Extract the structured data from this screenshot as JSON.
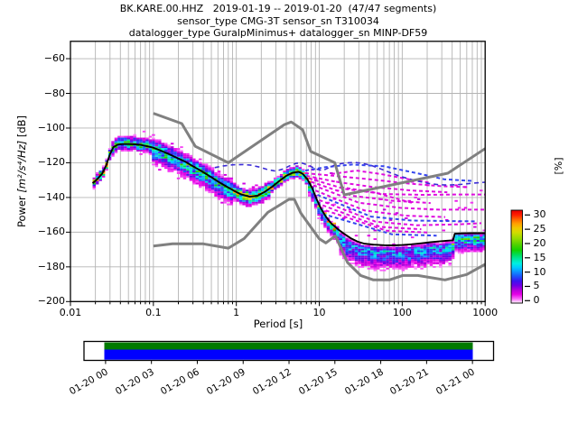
{
  "header": {
    "line1": "BK.KARE.00.HHZ   2019-01-19 -- 2019-01-20  (47/47 segments)",
    "line2": "sensor_type CMG-3T sensor_sn T310034",
    "line3": "datalogger_type GuralpMinimus+ datalogger_sn MINP-DF59"
  },
  "axes": {
    "xlabel": "Period [s]",
    "ylabel_pre": "Power ",
    "ylabel_math": "[m²/s⁴/Hz]",
    "ylabel_unit": " [dB]",
    "xlim": [
      0.01,
      1000
    ],
    "ylim": [
      -200,
      -50
    ],
    "xticks": [
      {
        "v": 0.01,
        "label": "0.01"
      },
      {
        "v": 0.1,
        "label": "0.1"
      },
      {
        "v": 1,
        "label": "1"
      },
      {
        "v": 10,
        "label": "10"
      },
      {
        "v": 100,
        "label": "100"
      },
      {
        "v": 1000,
        "label": "1000"
      }
    ],
    "yticks": [
      {
        "v": -60,
        "label": "−60"
      },
      {
        "v": -80,
        "label": "−80"
      },
      {
        "v": -100,
        "label": "−100"
      },
      {
        "v": -120,
        "label": "−120"
      },
      {
        "v": -140,
        "label": "−140"
      },
      {
        "v": -160,
        "label": "−160"
      },
      {
        "v": -180,
        "label": "−180"
      },
      {
        "v": -200,
        "label": "−200"
      }
    ],
    "grid_color": "#b4b4b4",
    "frame_color": "#000000"
  },
  "colorbar": {
    "label": "[%]",
    "ticks": [
      30,
      25,
      20,
      15,
      10,
      5,
      0
    ],
    "max_value": 31.6,
    "stops": [
      [
        0,
        "#ffffff"
      ],
      [
        1.5,
        "#fa64fa"
      ],
      [
        3,
        "#e600e6"
      ],
      [
        4.5,
        "#b400dc"
      ],
      [
        6,
        "#6e00e6"
      ],
      [
        7.5,
        "#3c14f0"
      ],
      [
        9,
        "#1e50fa"
      ],
      [
        10.5,
        "#0f8cff"
      ],
      [
        12,
        "#00c8ff"
      ],
      [
        13.5,
        "#00f0e1"
      ],
      [
        15,
        "#00e6a0"
      ],
      [
        16.5,
        "#00dc55"
      ],
      [
        18,
        "#14d200"
      ],
      [
        20,
        "#55d200"
      ],
      [
        22,
        "#96dc00"
      ],
      [
        24,
        "#d2dc00"
      ],
      [
        25.5,
        "#f0c800"
      ],
      [
        27,
        "#ffa000"
      ],
      [
        28.5,
        "#ff6400"
      ],
      [
        30,
        "#ff1e00"
      ],
      [
        31.6,
        "#e60000"
      ]
    ]
  },
  "timeline": {
    "labels": [
      "01-20 00",
      "01-20 03",
      "01-20 06",
      "01-20 09",
      "01-20 12",
      "01-20 15",
      "01-20 18",
      "01-20 21",
      "01-21 00"
    ],
    "coverage_colors": {
      "top_band": "#007a00",
      "bottom_band": "#0000ff"
    },
    "frame_color": "#000000"
  },
  "chart_data": {
    "type": "heatmap",
    "title": "BK.KARE.00.HHZ 2019-01-19 -- 2019-01-20 (47/47 segments)",
    "xlabel": "Period [s]",
    "ylabel": "Power [m²/s⁴/Hz] [dB]",
    "xlim": [
      0.01,
      1000
    ],
    "ylim": [
      -200,
      -50
    ],
    "x_log": true,
    "grid": true,
    "colorbar_unit": "%",
    "colorbar_range": [
      0,
      30
    ],
    "series": {
      "mode_line": {
        "name": "psd-mode-curve",
        "color": "#000000",
        "width": 1.9,
        "points": [
          [
            0.0185,
            -131.8
          ],
          [
            0.021,
            -129.5
          ],
          [
            0.024,
            -126.5
          ],
          [
            0.027,
            -121.5
          ],
          [
            0.03,
            -115
          ],
          [
            0.033,
            -111
          ],
          [
            0.037,
            -109.6
          ],
          [
            0.042,
            -109.2
          ],
          [
            0.05,
            -109.2
          ],
          [
            0.06,
            -109.3
          ],
          [
            0.07,
            -109.7
          ],
          [
            0.085,
            -110.5
          ],
          [
            0.1,
            -111.3
          ],
          [
            0.12,
            -112.8
          ],
          [
            0.15,
            -114.8
          ],
          [
            0.19,
            -117
          ],
          [
            0.24,
            -119.3
          ],
          [
            0.3,
            -122
          ],
          [
            0.38,
            -124.8
          ],
          [
            0.48,
            -127.8
          ],
          [
            0.6,
            -130.8
          ],
          [
            0.75,
            -133.5
          ],
          [
            0.95,
            -136.3
          ],
          [
            1.15,
            -138.3
          ],
          [
            1.45,
            -139.6
          ],
          [
            1.8,
            -139
          ],
          [
            2.2,
            -136.8
          ],
          [
            2.7,
            -133.8
          ],
          [
            3.3,
            -130.5
          ],
          [
            4.0,
            -127.5
          ],
          [
            4.8,
            -125.7
          ],
          [
            5.6,
            -125.2
          ],
          [
            6.3,
            -126.3
          ],
          [
            7.2,
            -129.5
          ],
          [
            8.2,
            -134.5
          ],
          [
            9.3,
            -141
          ],
          [
            10.5,
            -146.5
          ],
          [
            12,
            -151
          ],
          [
            14,
            -155
          ],
          [
            17,
            -158.5
          ],
          [
            20,
            -161
          ],
          [
            24,
            -163.5
          ],
          [
            29,
            -165.5
          ],
          [
            35,
            -166.6
          ],
          [
            45,
            -167.2
          ],
          [
            60,
            -167.5
          ],
          [
            80,
            -167.6
          ],
          [
            100,
            -167.4
          ],
          [
            130,
            -167
          ],
          [
            170,
            -166.4
          ],
          [
            220,
            -165.8
          ],
          [
            280,
            -165.3
          ],
          [
            350,
            -164.9
          ],
          [
            410,
            -164.7
          ],
          [
            430,
            -160.9
          ],
          [
            520,
            -160.7
          ],
          [
            700,
            -160.6
          ],
          [
            1000,
            -160.6
          ]
        ]
      },
      "noise_model_low": {
        "name": "peterson-nlnm",
        "color": "#808080",
        "width": 3,
        "points": [
          [
            0.1,
            -168.0
          ],
          [
            0.17,
            -166.7
          ],
          [
            0.4,
            -166.7
          ],
          [
            0.8,
            -169.2
          ],
          [
            1.24,
            -163.7
          ],
          [
            2.4,
            -148.6
          ],
          [
            4.3,
            -141.1
          ],
          [
            5.0,
            -141.1
          ],
          [
            6.0,
            -149.0
          ],
          [
            10.0,
            -163.8
          ],
          [
            12.0,
            -166.2
          ],
          [
            15.6,
            -162.1
          ],
          [
            21.9,
            -177.5
          ],
          [
            31.6,
            -185.0
          ],
          [
            45.0,
            -187.5
          ],
          [
            70.0,
            -187.5
          ],
          [
            101.0,
            -185.0
          ],
          [
            154.0,
            -185.0
          ],
          [
            328.0,
            -187.5
          ],
          [
            600.0,
            -184.4
          ],
          [
            1000,
            -178.5
          ]
        ]
      },
      "noise_model_high": {
        "name": "peterson-nhnm",
        "color": "#808080",
        "width": 3,
        "points": [
          [
            0.1,
            -91.5
          ],
          [
            0.22,
            -97.4
          ],
          [
            0.32,
            -110.5
          ],
          [
            0.8,
            -120.0
          ],
          [
            3.8,
            -98.0
          ],
          [
            4.6,
            -96.5
          ],
          [
            6.3,
            -101.0
          ],
          [
            7.9,
            -113.5
          ],
          [
            15.4,
            -120.0
          ],
          [
            20.0,
            -138.5
          ],
          [
            354.8,
            -126.0
          ],
          [
            1000,
            -111.8
          ]
        ]
      },
      "upper_envelope_dashed": {
        "name": "low-percentage-envelope",
        "color": "#3b2bd6",
        "width": 1.6,
        "dash": "5 4",
        "points": [
          [
            0.55,
            -122.8
          ],
          [
            0.7,
            -121.8
          ],
          [
            0.9,
            -121.2
          ],
          [
            1.2,
            -121
          ],
          [
            1.5,
            -121.4
          ],
          [
            1.9,
            -122.5
          ],
          [
            2.4,
            -124
          ],
          [
            3.0,
            -124.8
          ],
          [
            3.7,
            -123.5
          ],
          [
            4.5,
            -121.5
          ],
          [
            5.3,
            -120.3
          ],
          [
            6.2,
            -120.2
          ],
          [
            7.5,
            -121.5
          ],
          [
            9,
            -123.5
          ],
          [
            11,
            -124.5
          ],
          [
            13.5,
            -122.5
          ],
          [
            16,
            -121
          ],
          [
            20,
            -120.2
          ],
          [
            26,
            -119.8
          ],
          [
            33,
            -120.3
          ],
          [
            42,
            -121.5
          ],
          [
            55,
            -123.5
          ],
          [
            70,
            -125.5
          ],
          [
            90,
            -127.5
          ],
          [
            115,
            -129
          ],
          [
            150,
            -130.5
          ],
          [
            200,
            -131.8
          ],
          [
            270,
            -132.6
          ],
          [
            360,
            -132.9
          ],
          [
            500,
            -132.5
          ],
          [
            700,
            -131.8
          ],
          [
            1000,
            -131.2
          ]
        ]
      },
      "low_percentage_traces": [
        {
          "color": "#2a3cee",
          "points": [
            [
              6.8,
              -124.5
            ],
            [
              12,
              -122.5
            ],
            [
              25,
              -121
            ],
            [
              60,
              -122
            ],
            [
              150,
              -126
            ],
            [
              320,
              -129.5
            ],
            [
              700,
              -130.5
            ]
          ]
        },
        {
          "color": "#dd00dd",
          "points": [
            [
              6.8,
              -126
            ],
            [
              15,
              -127.5
            ],
            [
              40,
              -129.5
            ],
            [
              120,
              -132
            ],
            [
              300,
              -133.5
            ],
            [
              600,
              -134
            ]
          ]
        },
        {
          "color": "#dd00dd",
          "points": [
            [
              7,
              -127.5
            ],
            [
              16,
              -131
            ],
            [
              45,
              -134
            ],
            [
              130,
              -136
            ],
            [
              350,
              -137
            ]
          ]
        },
        {
          "color": "#dd00dd",
          "points": [
            [
              7.5,
              -129
            ],
            [
              20,
              -135
            ],
            [
              60,
              -138
            ],
            [
              180,
              -138.5
            ],
            [
              500,
              -138.3
            ],
            [
              1000,
              -138.3
            ]
          ]
        },
        {
          "color": "#dd00dd",
          "points": [
            [
              8,
              -131
            ],
            [
              25,
              -139
            ],
            [
              80,
              -142
            ],
            [
              220,
              -143.2
            ]
          ]
        },
        {
          "color": "#dd00dd",
          "points": [
            [
              8.5,
              -133
            ],
            [
              30,
              -143
            ],
            [
              95,
              -146
            ],
            [
              280,
              -147
            ],
            [
              650,
              -147
            ],
            [
              1000,
              -147
            ]
          ]
        },
        {
          "color": "#dd00dd",
          "points": [
            [
              9,
              -136
            ],
            [
              35,
              -147.5
            ],
            [
              110,
              -150.5
            ],
            [
              330,
              -151.3
            ]
          ]
        },
        {
          "color": "#2a3cee",
          "points": [
            [
              9.5,
              -138.5
            ],
            [
              42,
              -151
            ],
            [
              130,
              -153.3
            ],
            [
              420,
              -153.6
            ],
            [
              800,
              -153.8
            ]
          ]
        },
        {
          "color": "#dd00dd",
          "points": [
            [
              10,
              -141.5
            ],
            [
              48,
              -154
            ],
            [
              150,
              -156
            ],
            [
              480,
              -155.5
            ],
            [
              900,
              -154.8
            ]
          ]
        },
        {
          "color": "#dd00dd",
          "points": [
            [
              11,
              -144.5
            ],
            [
              55,
              -157
            ],
            [
              170,
              -158.3
            ]
          ]
        },
        {
          "color": "#dd00dd",
          "points": [
            [
              12,
              -147.5
            ],
            [
              65,
              -159.2
            ],
            [
              210,
              -160.2
            ]
          ]
        },
        {
          "color": "#2a3cee",
          "points": [
            [
              13,
              -150.5
            ],
            [
              75,
              -161.2
            ],
            [
              260,
              -162
            ]
          ]
        },
        {
          "color": "#dd00dd",
          "points": [
            [
              14,
              -126.5
            ],
            [
              28,
              -124.5
            ],
            [
              55,
              -126.5
            ],
            [
              120,
              -129.5
            ],
            [
              220,
              -131.5
            ]
          ]
        },
        {
          "color": "#dd00dd",
          "points": [
            [
              18,
              -134
            ],
            [
              45,
              -137
            ],
            [
              90,
              -141
            ],
            [
              140,
              -143.5
            ]
          ]
        }
      ]
    },
    "histogram_bands": [
      {
        "p0": 0.0185,
        "p1": 0.031,
        "up": 2,
        "dn": 2.5,
        "hot": 0.95,
        "off": 0
      },
      {
        "p0": 0.031,
        "p1": 0.095,
        "up": 3.5,
        "dn": 3,
        "hot": 0.6,
        "off": 0
      },
      {
        "p0": 0.095,
        "p1": 0.9,
        "up": 4.5,
        "dn": 6.5,
        "hot": 0.55,
        "off": -0.5
      },
      {
        "p0": 0.9,
        "p1": 2.6,
        "up": 3,
        "dn": 4,
        "hot": 0.8,
        "off": 0
      },
      {
        "p0": 2.6,
        "p1": 7.2,
        "up": 2.5,
        "dn": 2.5,
        "hot": 0.85,
        "off": 0
      },
      {
        "p0": 7.2,
        "p1": 18,
        "up": 2,
        "dn": 5,
        "hot": 0.5,
        "off": -1
      },
      {
        "p0": 18,
        "p1": 410,
        "up": 2.5,
        "dn": 8.5,
        "hot": 0.4,
        "off": -3.5
      },
      {
        "p0": 410,
        "p1": 1000,
        "up": 2,
        "dn": 6.5,
        "hot": 0.55,
        "off": -2
      }
    ]
  }
}
